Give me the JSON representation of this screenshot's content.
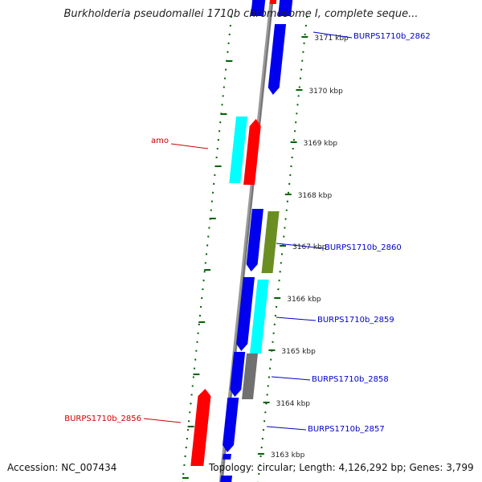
{
  "title": "Burkholderia pseudomallei 1710b chromosome I, complete seque...",
  "footer": {
    "accession": "Accession: NC_007434",
    "topology": "Topology: circular; Length: 4,126,292 bp; Genes: 3,799"
  },
  "colors": {
    "blue": "#0000ee",
    "cyan": "#00ffff",
    "red": "#ff0000",
    "olive": "#6b8e23",
    "gray": "#707070",
    "label_blue": "#0000cc",
    "label_red": "#cc0000",
    "tick_green": "#006400"
  },
  "ticks": [
    {
      "label": "3171 kbp",
      "kbp": 3171
    },
    {
      "label": "3170 kbp",
      "kbp": 3170
    },
    {
      "label": "3169 kbp",
      "kbp": 3169
    },
    {
      "label": "3168 kbp",
      "kbp": 3168
    },
    {
      "label": "3167 kbp",
      "kbp": 3167
    },
    {
      "label": "3166 kbp",
      "kbp": 3166
    },
    {
      "label": "3165 kbp",
      "kbp": 3165
    },
    {
      "label": "3164 kbp",
      "kbp": 3164
    },
    {
      "label": "3163 kbp",
      "kbp": 3163
    }
  ],
  "genes": [
    {
      "label": "BURPS1710b_2862",
      "color": "blue"
    },
    {
      "label": "amo",
      "color": "red"
    },
    {
      "label": "BURPS1710b_2860",
      "color": "blue"
    },
    {
      "label": "BURPS1710b_2859",
      "color": "blue"
    },
    {
      "label": "BURPS1710b_2858",
      "color": "blue"
    },
    {
      "label": "BURPS1710b_2857",
      "color": "blue"
    },
    {
      "label": "BURPS1710b_2856",
      "color": "red"
    }
  ]
}
